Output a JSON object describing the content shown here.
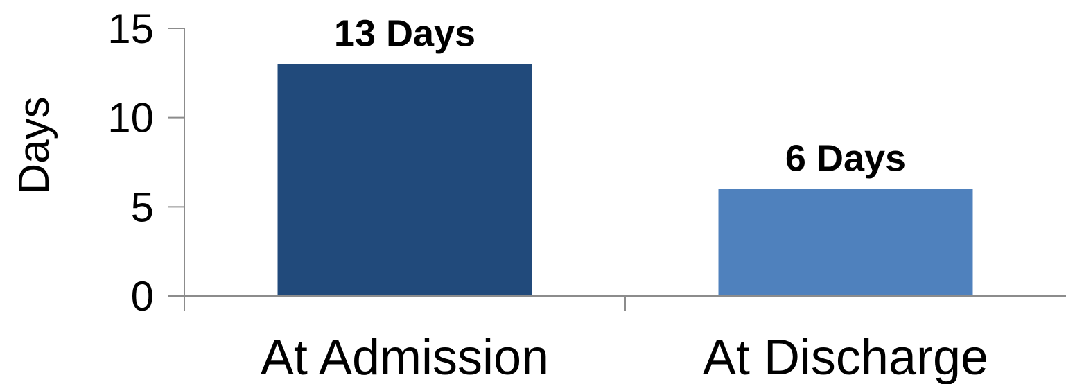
{
  "chart_data": {
    "type": "bar",
    "title": "",
    "xlabel": "",
    "ylabel": "Days",
    "ylim": [
      0,
      15
    ],
    "yticks": [
      0,
      5,
      10,
      15
    ],
    "categories": [
      "At Admission",
      "At Discharge"
    ],
    "values": [
      13,
      6
    ],
    "data_labels": [
      "13 Days",
      "6 Days"
    ],
    "colors": [
      "#214a7b",
      "#4f81bd"
    ],
    "grid": false,
    "legend": "none"
  }
}
